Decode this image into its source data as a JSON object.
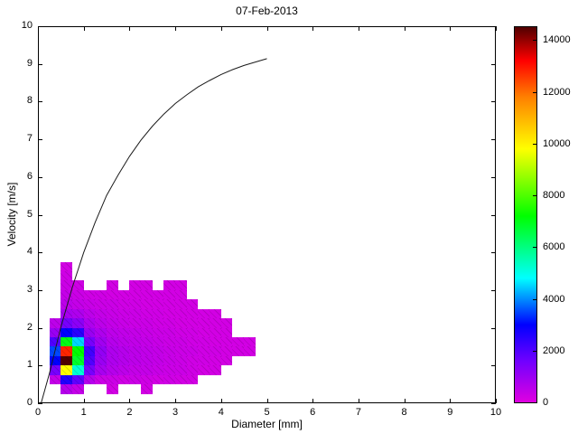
{
  "chart_data": {
    "type": "heatmap",
    "title": "07-Feb-2013",
    "xlabel": "Diameter [mm]",
    "ylabel": "Velocity [m/s]",
    "xlim": [
      0,
      10
    ],
    "ylim": [
      0,
      10
    ],
    "xticks": [
      0,
      1,
      2,
      3,
      4,
      5,
      6,
      7,
      8,
      9,
      10
    ],
    "yticks": [
      0,
      1,
      2,
      3,
      4,
      5,
      6,
      7,
      8,
      9,
      10
    ],
    "grid": false,
    "bin": 0.25,
    "x_start": 0.25,
    "y_start": 0.25,
    "values_note": "rows bottom-to-top, velocity bins starting 0.25 m/s; cols diameter bins starting 0.25 mm; counts",
    "values": [
      [
        0,
        600,
        400,
        0,
        0,
        200,
        0,
        0,
        200,
        0,
        0,
        0,
        0,
        0,
        0,
        0,
        0,
        0,
        0
      ],
      [
        400,
        2600,
        1800,
        600,
        300,
        300,
        250,
        300,
        250,
        200,
        250,
        200,
        200,
        0,
        0,
        0,
        0,
        0,
        0
      ],
      [
        1500,
        9800,
        5200,
        1500,
        800,
        600,
        500,
        400,
        400,
        350,
        300,
        300,
        250,
        200,
        200,
        0,
        0,
        0,
        0
      ],
      [
        3000,
        14800,
        6800,
        2000,
        1000,
        700,
        600,
        500,
        450,
        400,
        350,
        300,
        250,
        250,
        200,
        200,
        0,
        0,
        0
      ],
      [
        3500,
        12800,
        7200,
        2200,
        1100,
        700,
        600,
        500,
        450,
        400,
        350,
        300,
        300,
        250,
        250,
        200,
        200,
        200,
        0
      ],
      [
        2000,
        7000,
        4500,
        1500,
        900,
        600,
        500,
        450,
        400,
        350,
        300,
        300,
        250,
        250,
        200,
        200,
        200,
        200,
        0
      ],
      [
        1000,
        3000,
        2500,
        1000,
        700,
        500,
        450,
        400,
        350,
        300,
        300,
        250,
        250,
        200,
        200,
        200,
        0,
        0,
        0
      ],
      [
        500,
        1500,
        1200,
        700,
        500,
        400,
        350,
        300,
        300,
        250,
        250,
        200,
        200,
        200,
        200,
        200,
        0,
        0,
        0
      ],
      [
        0,
        800,
        700,
        500,
        400,
        350,
        300,
        300,
        250,
        250,
        200,
        200,
        200,
        200,
        200,
        0,
        0,
        0,
        0
      ],
      [
        0,
        500,
        400,
        350,
        300,
        300,
        250,
        250,
        200,
        200,
        200,
        200,
        200,
        0,
        0,
        0,
        0,
        0,
        0
      ],
      [
        0,
        400,
        300,
        250,
        250,
        200,
        200,
        200,
        200,
        200,
        200,
        200,
        0,
        0,
        0,
        0,
        0,
        0,
        0
      ],
      [
        0,
        300,
        250,
        0,
        0,
        200,
        0,
        200,
        200,
        0,
        200,
        200,
        0,
        0,
        0,
        0,
        0,
        0,
        0
      ],
      [
        0,
        250,
        0,
        0,
        0,
        0,
        0,
        0,
        0,
        0,
        0,
        0,
        0,
        0,
        0,
        0,
        0,
        0,
        0
      ],
      [
        0,
        200,
        0,
        0,
        0,
        0,
        0,
        0,
        0,
        0,
        0,
        0,
        0,
        0,
        0,
        0,
        0,
        0,
        0
      ]
    ],
    "curve": {
      "name": "terminal-velocity-curve",
      "color": "#1a1a1a",
      "points": [
        [
          0.07,
          0
        ],
        [
          0.25,
          0.79
        ],
        [
          0.5,
          2.02
        ],
        [
          0.75,
          3.07
        ],
        [
          1,
          4.0
        ],
        [
          1.25,
          4.8
        ],
        [
          1.5,
          5.51
        ],
        [
          1.75,
          6.05
        ],
        [
          2,
          6.55
        ],
        [
          2.25,
          6.98
        ],
        [
          2.5,
          7.35
        ],
        [
          2.75,
          7.67
        ],
        [
          3,
          7.95
        ],
        [
          3.25,
          8.18
        ],
        [
          3.5,
          8.39
        ],
        [
          3.75,
          8.56
        ],
        [
          4,
          8.72
        ],
        [
          4.25,
          8.85
        ],
        [
          4.5,
          8.96
        ],
        [
          4.75,
          9.05
        ],
        [
          5,
          9.14
        ]
      ]
    },
    "colorbar_ticks": [
      0,
      2000,
      4000,
      6000,
      8000,
      10000,
      12000,
      14000
    ],
    "colorbar_max": 14500,
    "colormap_stops": [
      [
        0,
        "#e000e0"
      ],
      [
        1600,
        "#7000ff"
      ],
      [
        3000,
        "#0000ff"
      ],
      [
        4800,
        "#00ffff"
      ],
      [
        7200,
        "#00ff00"
      ],
      [
        9800,
        "#ffff00"
      ],
      [
        11800,
        "#ff8000"
      ],
      [
        13200,
        "#ff0000"
      ],
      [
        14500,
        "#500000"
      ]
    ]
  }
}
